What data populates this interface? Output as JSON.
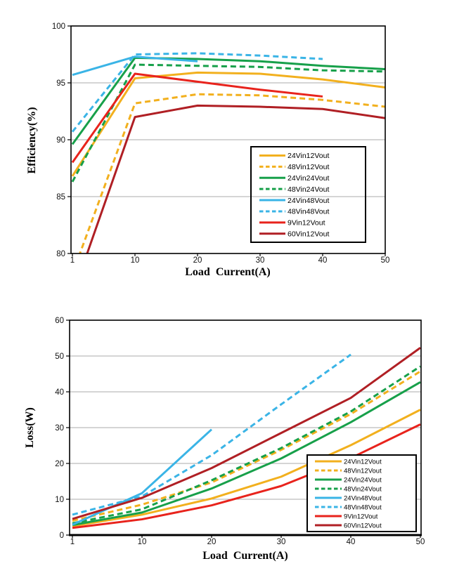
{
  "figure": {
    "background": "#ffffff",
    "grid_color": "#ABABAB",
    "border_color": "#000000",
    "tick_label_color": "#111111",
    "legend_border_color": "#000000"
  },
  "chart_data": [
    {
      "type": "line",
      "title": "",
      "xlabel": "Load  Current(A)",
      "ylabel": "Efficiency(%)",
      "categories": [
        1,
        10,
        20,
        30,
        40,
        50
      ],
      "x_ticks": [
        "1",
        "10",
        "20",
        "30",
        "40",
        "50"
      ],
      "y_ticks": [
        80,
        85,
        90,
        95,
        100
      ],
      "ylim": [
        80,
        100
      ],
      "grid": "horizontal",
      "legend_position": "inside-right",
      "legend_fill": "transparent",
      "series": [
        {
          "name": "24Vin12Vout",
          "color": "#F2B01E",
          "style": "solid",
          "values": [
            86.8,
            95.4,
            95.9,
            95.8,
            95.3,
            94.6
          ]
        },
        {
          "name": "48Vin12Vout",
          "color": "#F2B01E",
          "style": "dashed",
          "values": [
            78.2,
            93.2,
            94.0,
            93.9,
            93.5,
            92.9
          ]
        },
        {
          "name": "24Vin24Vout",
          "color": "#17A04A",
          "style": "solid",
          "values": [
            89.6,
            97.2,
            97.1,
            96.9,
            96.5,
            96.2
          ]
        },
        {
          "name": "48Vin24Vout",
          "color": "#17A04A",
          "style": "dashed",
          "values": [
            86.3,
            96.6,
            96.5,
            96.4,
            96.1,
            96.0
          ]
        },
        {
          "name": "24Vin48Vout",
          "color": "#3AB4E6",
          "style": "solid",
          "values": [
            95.7,
            97.3,
            96.9,
            null,
            null,
            null
          ]
        },
        {
          "name": "48Vin48Vout",
          "color": "#3AB4E6",
          "style": "dashed",
          "values": [
            90.7,
            97.5,
            97.6,
            97.4,
            97.1,
            null
          ]
        },
        {
          "name": "9Vin12Vout",
          "color": "#E8231C",
          "style": "solid",
          "values": [
            88.0,
            95.8,
            95.1,
            94.4,
            93.8,
            null
          ]
        },
        {
          "name": "60Vin12Vout",
          "color": "#B01F24",
          "style": "solid",
          "values": [
            76.3,
            92.0,
            93.0,
            92.9,
            92.7,
            91.9
          ]
        }
      ]
    },
    {
      "type": "line",
      "title": "",
      "xlabel": "Load  Current(A)",
      "ylabel": "Loss(W)",
      "categories": [
        1,
        10,
        20,
        30,
        40,
        50
      ],
      "x_ticks": [
        "1",
        "10",
        "20",
        "30",
        "40",
        "50"
      ],
      "y_ticks": [
        0,
        10,
        20,
        30,
        40,
        50,
        60
      ],
      "ylim": [
        0,
        60
      ],
      "grid": "horizontal",
      "legend_position": "inside-bottom-right",
      "legend_fill": "#ffffff",
      "series": [
        {
          "name": "24Vin12Vout",
          "color": "#F2B01E",
          "style": "solid",
          "values": [
            2.5,
            5.7,
            10.2,
            16.3,
            25.1,
            35.0
          ]
        },
        {
          "name": "48Vin12Vout",
          "color": "#F2B01E",
          "style": "dashed",
          "values": [
            4.0,
            8.5,
            14.7,
            23.8,
            33.8,
            45.7
          ]
        },
        {
          "name": "24Vin24Vout",
          "color": "#17A04A",
          "style": "solid",
          "values": [
            2.8,
            6.3,
            13.0,
            21.4,
            31.5,
            42.7
          ]
        },
        {
          "name": "48Vin24Vout",
          "color": "#17A04A",
          "style": "dashed",
          "values": [
            3.3,
            7.2,
            15.3,
            24.3,
            34.5,
            47.1
          ]
        },
        {
          "name": "24Vin48Vout",
          "color": "#3AB4E6",
          "style": "solid",
          "values": [
            2.9,
            11.7,
            29.5,
            null,
            null,
            null
          ]
        },
        {
          "name": "48Vin48Vout",
          "color": "#3AB4E6",
          "style": "dashed",
          "values": [
            5.7,
            10.8,
            22.3,
            36.5,
            50.4,
            null
          ]
        },
        {
          "name": "9Vin12Vout",
          "color": "#E8231C",
          "style": "solid",
          "values": [
            2.0,
            4.4,
            8.3,
            13.7,
            21.5,
            30.9
          ]
        },
        {
          "name": "60Vin12Vout",
          "color": "#B01F24",
          "style": "solid",
          "values": [
            4.5,
            10.4,
            18.7,
            28.5,
            38.3,
            52.3
          ]
        }
      ]
    }
  ]
}
